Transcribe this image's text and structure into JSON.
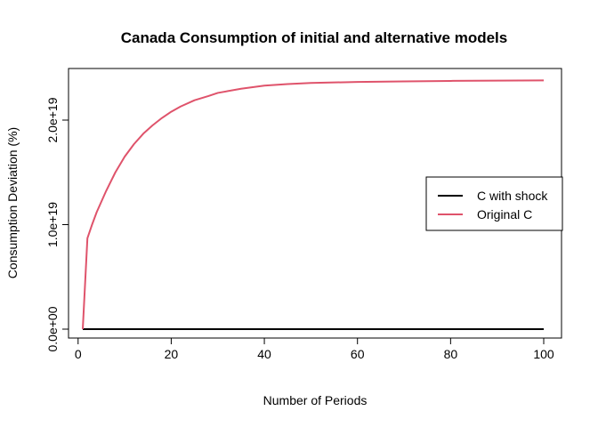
{
  "chart_data": {
    "type": "line",
    "title": "Canada Consumption of initial and alternative models",
    "xlabel": "Number of Periods",
    "ylabel": "Consumption Deviation (%)",
    "xlim": [
      1,
      100
    ],
    "ylim": [
      0,
      2.4e+19
    ],
    "x_ticks": [
      0,
      20,
      40,
      60,
      80,
      100
    ],
    "x_tick_labels": [
      "0",
      "20",
      "40",
      "60",
      "80",
      "100"
    ],
    "y_ticks": [
      0,
      1e+19,
      2e+19
    ],
    "y_tick_labels": [
      "0.0e+00",
      "1.0e+19",
      "2.0e+19"
    ],
    "grid": false,
    "legend_position": "right",
    "series": [
      {
        "name": "C with shock",
        "color": "#000000",
        "x": [
          1,
          100
        ],
        "y": [
          0,
          0
        ]
      },
      {
        "name": "Original C",
        "color": "#DF536B",
        "x": [
          1,
          2,
          3,
          4,
          5,
          6,
          8,
          10,
          12,
          14,
          16,
          18,
          20,
          22,
          25,
          28,
          30,
          35,
          40,
          45,
          50,
          60,
          70,
          80,
          90,
          100
        ],
        "y": [
          0,
          8.7e+18,
          1e+19,
          1.12e+19,
          1.22e+19,
          1.32e+19,
          1.5e+19,
          1.65e+19,
          1.77e+19,
          1.87e+19,
          1.95e+19,
          2.02e+19,
          2.08e+19,
          2.13e+19,
          2.19e+19,
          2.23e+19,
          2.26e+19,
          2.3e+19,
          2.33e+19,
          2.345e+19,
          2.355e+19,
          2.365e+19,
          2.37e+19,
          2.375e+19,
          2.378e+19,
          2.38e+19
        ]
      }
    ]
  }
}
